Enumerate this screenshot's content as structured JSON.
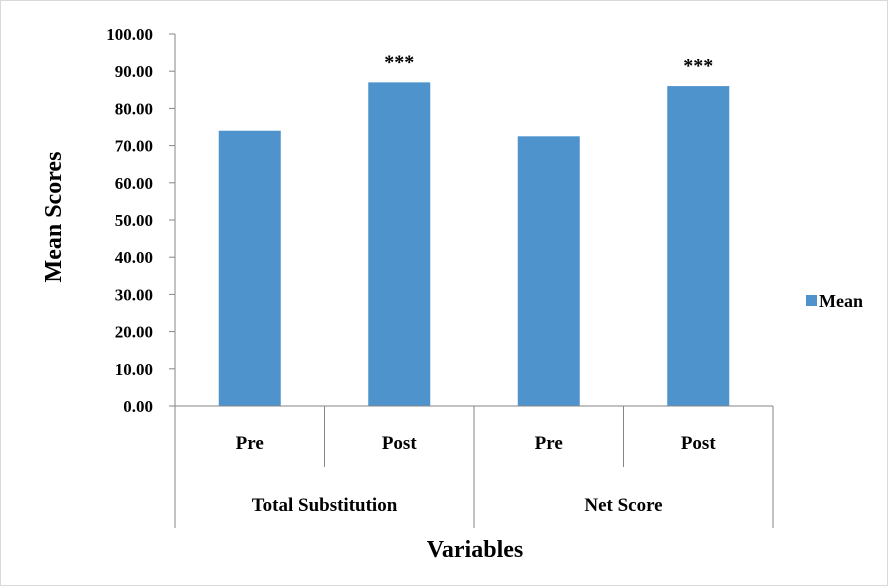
{
  "chart_data": {
    "type": "bar",
    "categories": [
      "Pre",
      "Post",
      "Pre",
      "Post"
    ],
    "groups": [
      {
        "label": "Total Substitution",
        "categories": [
          "Pre",
          "Post"
        ]
      },
      {
        "label": "Net Score",
        "categories": [
          "Pre",
          "Post"
        ]
      }
    ],
    "series": [
      {
        "name": "Mean",
        "values": [
          74.0,
          87.0,
          72.5,
          86.0
        ],
        "color": "#4f93cd"
      }
    ],
    "annotations": [
      "",
      "***",
      "",
      "***"
    ],
    "ylabel": "Mean Scores",
    "xlabel": "Variables",
    "ylim": [
      0,
      100
    ],
    "yticks": [
      "0.00",
      "10.00",
      "20.00",
      "30.00",
      "40.00",
      "50.00",
      "60.00",
      "70.00",
      "80.00",
      "90.00",
      "100.00"
    ],
    "grid": false,
    "legend": {
      "position": "right",
      "entries": [
        "Mean"
      ]
    }
  }
}
